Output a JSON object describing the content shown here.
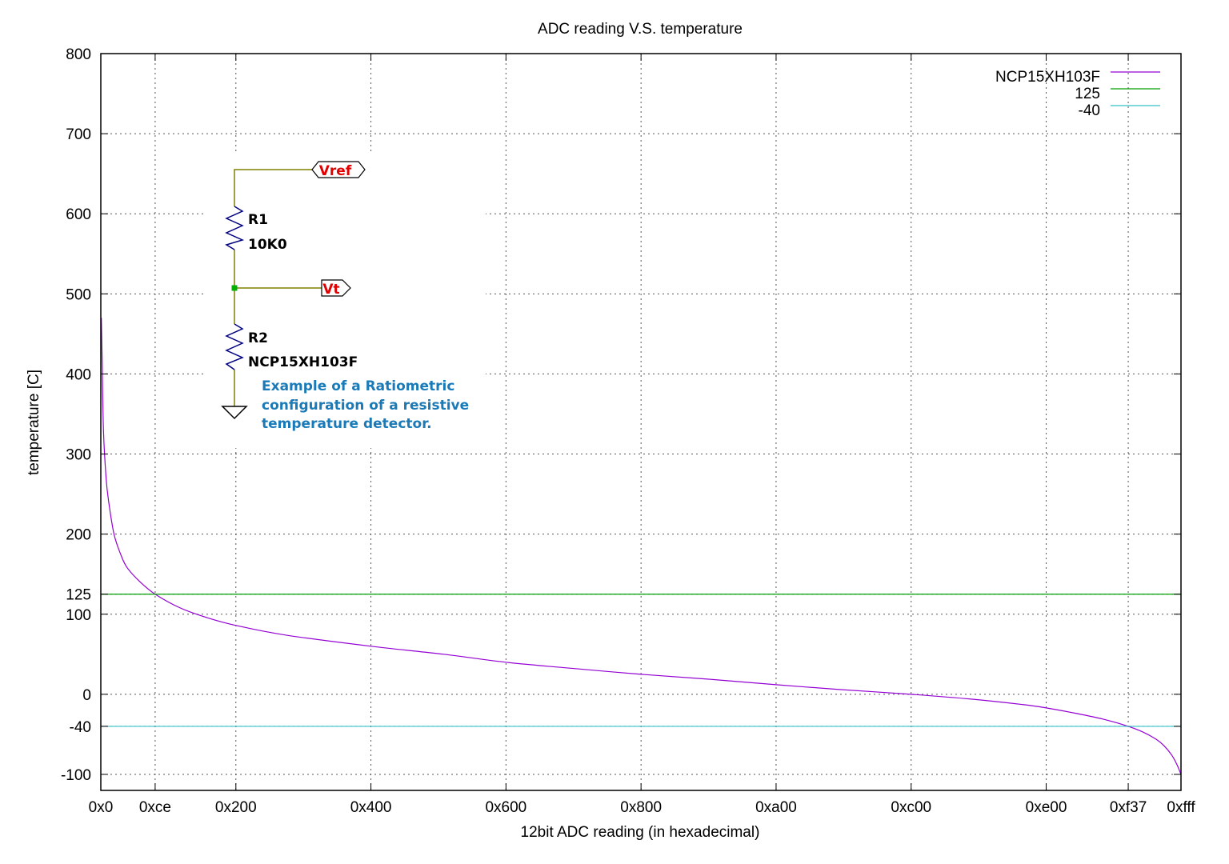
{
  "chart_data": {
    "type": "line",
    "title": "ADC reading V.S. temperature",
    "xlabel": "12bit ADC reading (in hexadecimal)",
    "ylabel": "temperature [C]",
    "xlim": [
      0,
      4095
    ],
    "ylim": [
      -120,
      800
    ],
    "grid": true,
    "legend_position": "top-right",
    "x_ticks": [
      {
        "value": 0,
        "label": "0x0"
      },
      {
        "value": 206,
        "label": "0xce"
      },
      {
        "value": 512,
        "label": "0x200"
      },
      {
        "value": 1024,
        "label": "0x400"
      },
      {
        "value": 1536,
        "label": "0x600"
      },
      {
        "value": 2048,
        "label": "0x800"
      },
      {
        "value": 2560,
        "label": "0xa00"
      },
      {
        "value": 3072,
        "label": "0xc00"
      },
      {
        "value": 3584,
        "label": "0xe00"
      },
      {
        "value": 3895,
        "label": "0xf37"
      },
      {
        "value": 4095,
        "label": "0xfff"
      }
    ],
    "y_ticks": [
      {
        "value": 800,
        "label": "800"
      },
      {
        "value": 700,
        "label": "700"
      },
      {
        "value": 600,
        "label": "600"
      },
      {
        "value": 500,
        "label": "500"
      },
      {
        "value": 400,
        "label": "400"
      },
      {
        "value": 300,
        "label": "300"
      },
      {
        "value": 200,
        "label": "200"
      },
      {
        "value": 125,
        "label": "125"
      },
      {
        "value": 100,
        "label": "100"
      },
      {
        "value": 0,
        "label": "0"
      },
      {
        "value": -40,
        "label": "-40"
      },
      {
        "value": -100,
        "label": "-100"
      }
    ],
    "series": [
      {
        "name": "NCP15XH103F",
        "color": "#9400d3",
        "x": [
          2,
          5,
          10,
          20,
          30,
          50,
          75,
          100,
          150,
          206,
          300,
          400,
          512,
          700,
          1024,
          1300,
          1536,
          1800,
          2048,
          2300,
          2560,
          2800,
          3072,
          3300,
          3500,
          3584,
          3700,
          3800,
          3895,
          3950,
          4000,
          4030,
          4060,
          4080,
          4095
        ],
        "y": [
          470,
          420,
          330,
          270,
          240,
          200,
          175,
          158,
          140,
          125,
          108,
          96,
          86,
          74,
          60,
          50,
          40,
          32,
          25,
          19,
          12,
          6,
          0,
          -6,
          -13,
          -17,
          -24,
          -31,
          -40,
          -47,
          -56,
          -64,
          -76,
          -88,
          -100
        ]
      },
      {
        "name": "125",
        "color": "#009e00",
        "x": [
          0,
          4095
        ],
        "y": [
          125,
          125
        ]
      },
      {
        "name": "-40",
        "color": "#30c0c8",
        "x": [
          0,
          4095
        ],
        "y": [
          -40,
          -40
        ]
      }
    ]
  },
  "schematic": {
    "vref_label": "Vref",
    "vt_label": "Vt",
    "r1_name": "R1",
    "r1_value": "10K0",
    "r2_name": "R2",
    "r2_value": "NCP15XH103F",
    "caption_lines": [
      "Example of a Ratiometric",
      "configuration of a resistive",
      "temperature detector."
    ],
    "wire_color": "#808000",
    "resistor_color": "#000080",
    "label_color": "#e00000",
    "caption_color": "#1a7ab8"
  }
}
